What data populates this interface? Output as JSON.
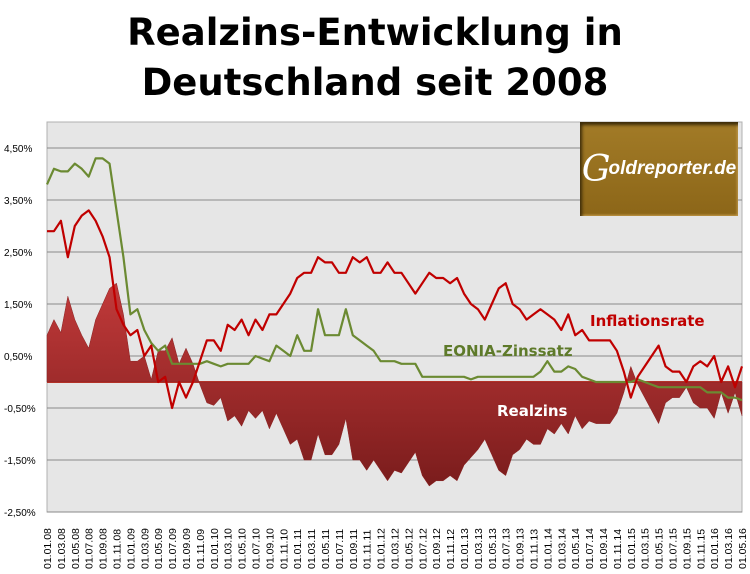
{
  "chart_data": {
    "type": "line",
    "title": "Realzins-Entwicklung in Deutschland seit 2008",
    "title_lines": [
      "Realzins-Entwicklung in",
      "Deutschland seit 2008"
    ],
    "logo_text": "Goldreporter.de",
    "ylim": [
      -2.5,
      5.0
    ],
    "y_ticks": [
      {
        "v": 4.5,
        "label": "4,50%"
      },
      {
        "v": 3.5,
        "label": "3,50%"
      },
      {
        "v": 2.5,
        "label": "2,50%"
      },
      {
        "v": 1.5,
        "label": "1,50%"
      },
      {
        "v": 0.5,
        "label": "0,50%"
      },
      {
        "v": -0.5,
        "label": "-0,50%"
      },
      {
        "v": -1.5,
        "label": "-1,50%"
      },
      {
        "v": -2.5,
        "label": "-2,50%"
      }
    ],
    "x_tick_labels": [
      "01.01.08",
      "01.03.08",
      "01.05.08",
      "01.07.08",
      "01.09.08",
      "01.11.08",
      "01.01.09",
      "01.03.09",
      "01.05.09",
      "01.07.09",
      "01.09.09",
      "01.11.09",
      "01.01.10",
      "01.03.10",
      "01.05.10",
      "01.07.10",
      "01.09.10",
      "01.11.10",
      "01.01.11",
      "01.03.11",
      "01.05.11",
      "01.07.11",
      "01.09.11",
      "01.11.11",
      "01.01.12",
      "01.03.12",
      "01.05.12",
      "01.07.12",
      "01.09.12",
      "01.11.12",
      "01.01.13",
      "01.03.13",
      "01.05.13",
      "01.07.13",
      "01.09.13",
      "01.11.13",
      "01.01.14",
      "01.03.14",
      "01.05.14",
      "01.07.14",
      "01.09.14",
      "01.11.14",
      "01.01.15",
      "01.03.15",
      "01.05.15",
      "01.07.15",
      "01.09.15",
      "01.11.15",
      "01.01.16",
      "01.03.16",
      "01.05.16"
    ],
    "x_range": "monthly 01.01.08 - 01.05.16",
    "grid": true,
    "series": [
      {
        "name": "Inflationsrate",
        "color": "#c00000",
        "type": "line",
        "values": [
          2.9,
          2.9,
          3.1,
          2.4,
          3.0,
          3.2,
          3.3,
          3.1,
          2.8,
          2.4,
          1.4,
          1.1,
          0.9,
          1.0,
          0.5,
          0.7,
          0.0,
          0.1,
          -0.5,
          0.0,
          -0.3,
          0.0,
          0.4,
          0.8,
          0.8,
          0.6,
          1.1,
          1.0,
          1.2,
          0.9,
          1.2,
          1.0,
          1.3,
          1.3,
          1.5,
          1.7,
          2.0,
          2.1,
          2.1,
          2.4,
          2.3,
          2.3,
          2.1,
          2.1,
          2.4,
          2.3,
          2.4,
          2.1,
          2.1,
          2.3,
          2.1,
          2.1,
          1.9,
          1.7,
          1.9,
          2.1,
          2.0,
          2.0,
          1.9,
          2.0,
          1.7,
          1.5,
          1.4,
          1.2,
          1.5,
          1.8,
          1.9,
          1.5,
          1.4,
          1.2,
          1.3,
          1.4,
          1.3,
          1.2,
          1.0,
          1.3,
          0.9,
          1.0,
          0.8,
          0.8,
          0.8,
          0.8,
          0.6,
          0.2,
          -0.3,
          0.1,
          0.3,
          0.5,
          0.7,
          0.3,
          0.2,
          0.2,
          0.0,
          0.3,
          0.4,
          0.3,
          0.5,
          0.0,
          0.3,
          -0.1,
          0.3
        ]
      },
      {
        "name": "EONIA-Zinssatz",
        "color": "#6b8a32",
        "type": "line",
        "values": [
          3.8,
          4.1,
          4.05,
          4.05,
          4.2,
          4.1,
          3.95,
          4.3,
          4.3,
          4.2,
          3.3,
          2.4,
          1.3,
          1.4,
          1.0,
          0.75,
          0.6,
          0.7,
          0.35,
          0.35,
          0.35,
          0.35,
          0.35,
          0.4,
          0.35,
          0.3,
          0.35,
          0.35,
          0.35,
          0.35,
          0.5,
          0.45,
          0.4,
          0.7,
          0.6,
          0.5,
          0.9,
          0.6,
          0.6,
          1.4,
          0.9,
          0.9,
          0.9,
          1.4,
          0.9,
          0.8,
          0.7,
          0.6,
          0.4,
          0.4,
          0.4,
          0.35,
          0.35,
          0.35,
          0.1,
          0.1,
          0.1,
          0.1,
          0.1,
          0.1,
          0.1,
          0.05,
          0.1,
          0.1,
          0.1,
          0.1,
          0.1,
          0.1,
          0.1,
          0.1,
          0.1,
          0.2,
          0.4,
          0.2,
          0.2,
          0.3,
          0.25,
          0.1,
          0.05,
          0.0,
          0.0,
          0.0,
          0.0,
          0.0,
          0.0,
          0.05,
          0.0,
          -0.05,
          -0.1,
          -0.1,
          -0.1,
          -0.1,
          -0.1,
          -0.1,
          -0.1,
          -0.2,
          -0.2,
          -0.2,
          -0.3,
          -0.3,
          -0.35
        ]
      },
      {
        "name": "Realzins",
        "color": "#9e2a2a",
        "type": "area",
        "values": [
          0.9,
          1.2,
          0.95,
          1.65,
          1.2,
          0.9,
          0.65,
          1.2,
          1.5,
          1.8,
          1.9,
          1.3,
          0.4,
          0.4,
          0.5,
          0.05,
          0.6,
          0.6,
          0.85,
          0.35,
          0.65,
          0.35,
          -0.05,
          -0.4,
          -0.45,
          -0.3,
          -0.75,
          -0.65,
          -0.85,
          -0.55,
          -0.7,
          -0.55,
          -0.9,
          -0.6,
          -0.9,
          -1.2,
          -1.1,
          -1.5,
          -1.5,
          -1.0,
          -1.4,
          -1.4,
          -1.2,
          -0.7,
          -1.5,
          -1.5,
          -1.7,
          -1.5,
          -1.7,
          -1.9,
          -1.7,
          -1.75,
          -1.55,
          -1.35,
          -1.8,
          -2.0,
          -1.9,
          -1.9,
          -1.8,
          -1.9,
          -1.6,
          -1.45,
          -1.3,
          -1.1,
          -1.4,
          -1.7,
          -1.8,
          -1.4,
          -1.3,
          -1.1,
          -1.2,
          -1.2,
          -0.9,
          -1.0,
          -0.8,
          -1.0,
          -0.65,
          -0.9,
          -0.75,
          -0.8,
          -0.8,
          -0.8,
          -0.6,
          -0.2,
          0.3,
          -0.05,
          -0.3,
          -0.55,
          -0.8,
          -0.4,
          -0.3,
          -0.3,
          -0.1,
          -0.4,
          -0.5,
          -0.5,
          -0.7,
          -0.2,
          -0.6,
          -0.2,
          -0.65
        ]
      }
    ]
  }
}
